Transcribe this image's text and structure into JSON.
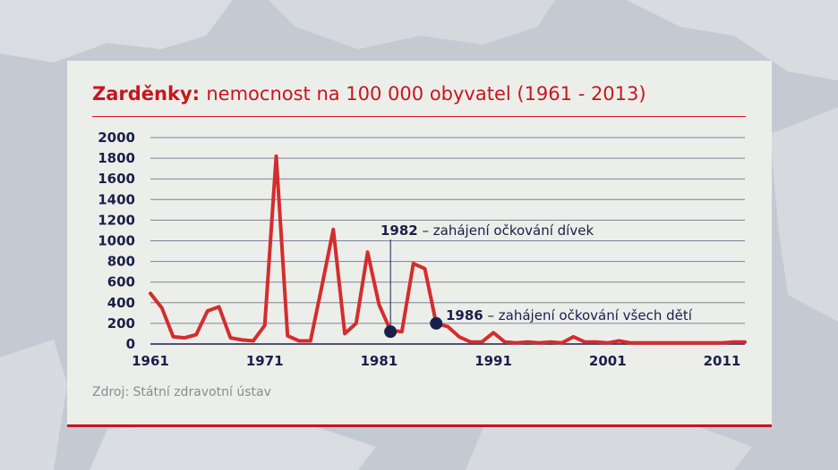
{
  "title_bold": "Zarděnky:",
  "title_rest": "nemocnost na 100 000 obyvatel (1961 - 2013)",
  "source": "Zdroj: Státní zdravotní ústav",
  "colors": {
    "accent": "#c8161d",
    "navy": "#1a1f4a",
    "panel": "#eceeea"
  },
  "chart_data": {
    "type": "line",
    "x_ticks": [
      "1961",
      "1971",
      "1981",
      "1991",
      "2001",
      "2011"
    ],
    "y_ticks": [
      "0",
      "200",
      "400",
      "600",
      "800",
      "1000",
      "1200",
      "1400",
      "1600",
      "1800",
      "2000"
    ],
    "ylim": [
      0,
      2000
    ],
    "xlim": [
      1961,
      2013
    ],
    "grid": true,
    "series": [
      {
        "color": "#d42d2d",
        "x": [
          1961,
          1962,
          1963,
          1964,
          1965,
          1966,
          1967,
          1968,
          1969,
          1970,
          1971,
          1972,
          1973,
          1974,
          1975,
          1976,
          1977,
          1978,
          1979,
          1980,
          1981,
          1982,
          1983,
          1984,
          1985,
          1986,
          1987,
          1988,
          1989,
          1990,
          1991,
          1992,
          1993,
          1994,
          1995,
          1996,
          1997,
          1998,
          1999,
          2000,
          2001,
          2002,
          2003,
          2004,
          2005,
          2006,
          2007,
          2008,
          2009,
          2010,
          2011,
          2012,
          2013
        ],
        "values": [
          490,
          350,
          70,
          60,
          90,
          320,
          360,
          60,
          40,
          30,
          180,
          1820,
          80,
          30,
          30,
          560,
          1110,
          100,
          200,
          890,
          380,
          130,
          120,
          780,
          730,
          200,
          170,
          70,
          20,
          20,
          110,
          20,
          10,
          20,
          10,
          20,
          10,
          70,
          20,
          20,
          10,
          30,
          10,
          10,
          10,
          10,
          10,
          10,
          10,
          10,
          10,
          20,
          20
        ]
      }
    ],
    "annotations": [
      {
        "x": 1982,
        "y": 120,
        "label_year": "1982",
        "label_text": "– zahájení očkování dívek"
      },
      {
        "x": 1986,
        "y": 200,
        "label_year": "1986",
        "label_text": "– zahájení očkování všech dětí"
      }
    ]
  }
}
